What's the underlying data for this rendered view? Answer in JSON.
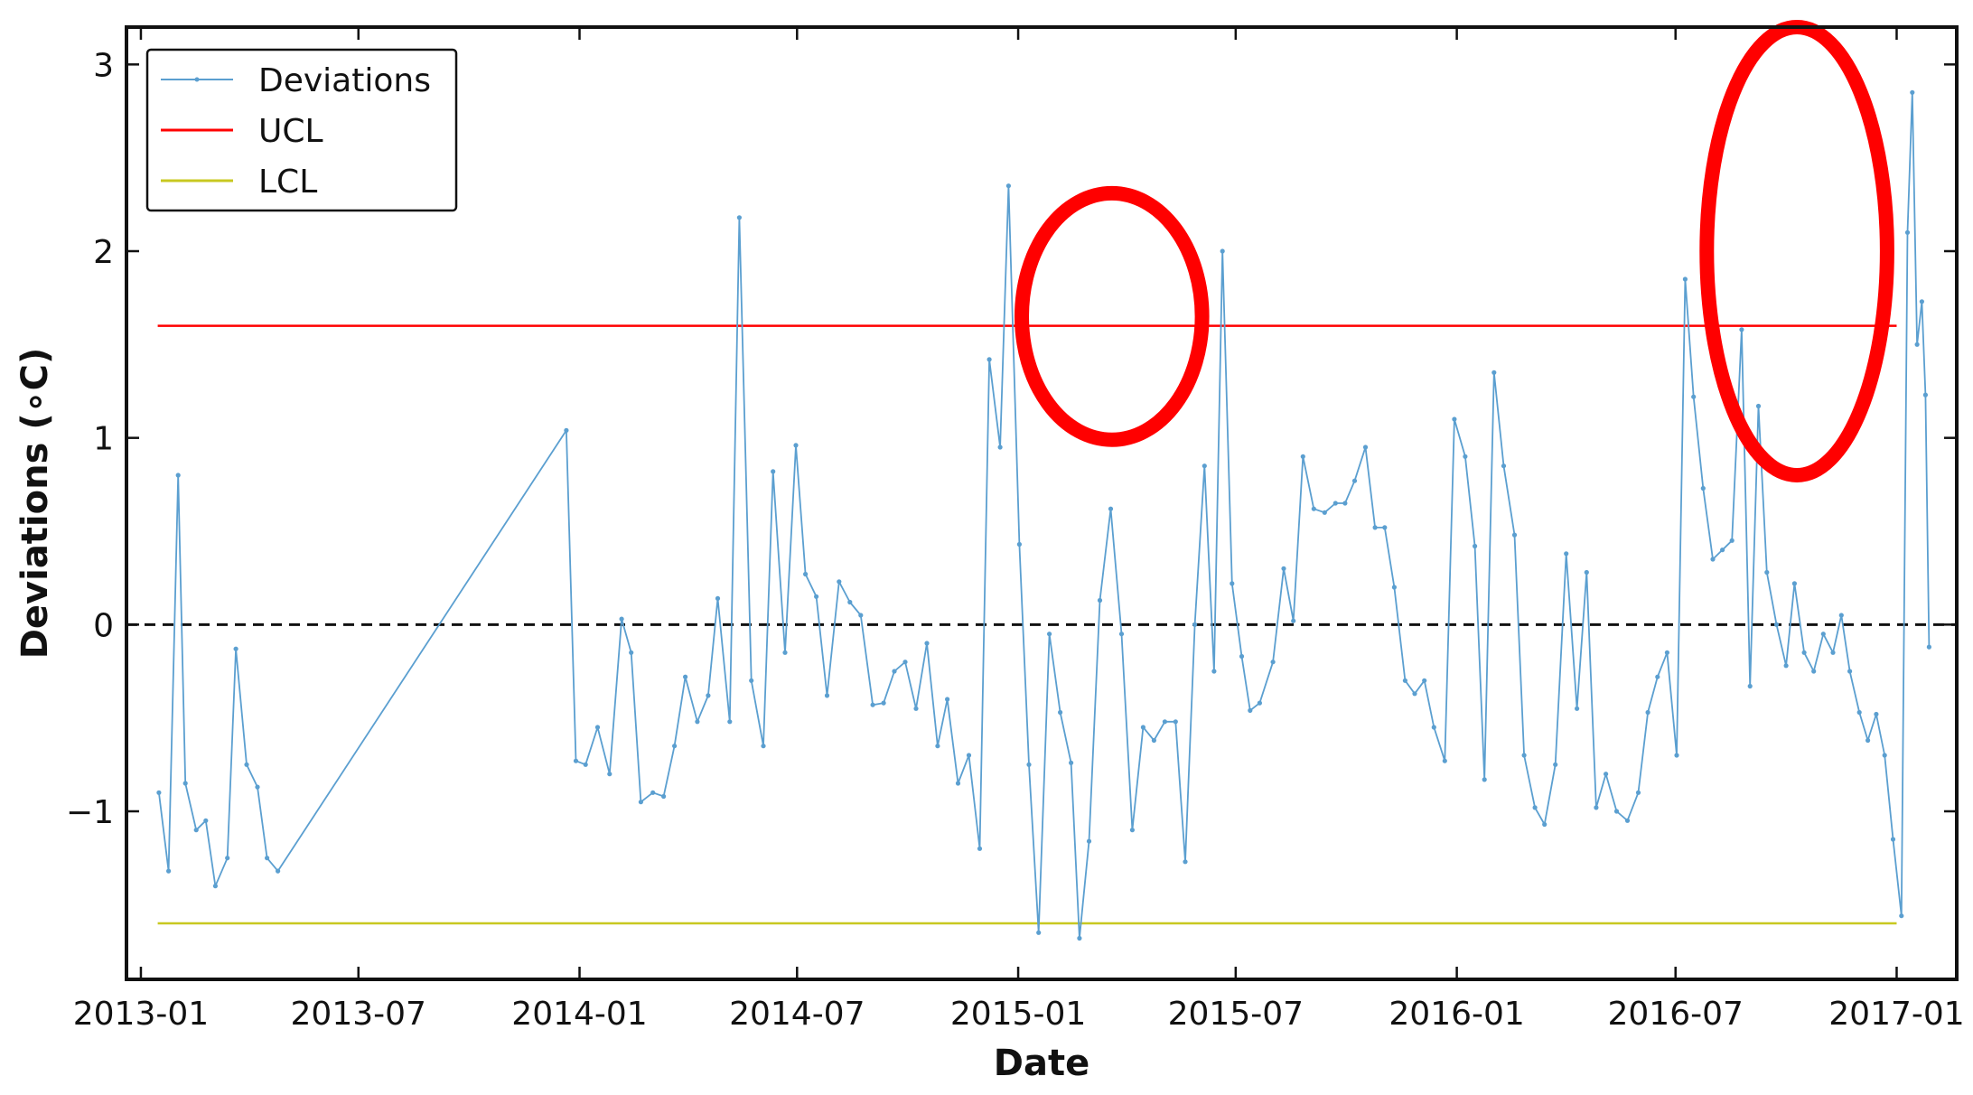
{
  "chart_data": {
    "type": "line",
    "xlabel": "Date",
    "ylabel": "Deviations (∘C)",
    "x_range": [
      "2012-12-20",
      "2017-02-20"
    ],
    "ylim": [
      -1.9,
      3.2
    ],
    "x_ticks": [
      "2013-01",
      "2013-07",
      "2014-01",
      "2014-07",
      "2015-01",
      "2015-07",
      "2016-01",
      "2016-07",
      "2017-01"
    ],
    "y_ticks": [
      {
        "value": 3,
        "label": "3"
      },
      {
        "value": 2,
        "label": "2"
      },
      {
        "value": 1,
        "label": "1"
      },
      {
        "value": 0,
        "label": "0"
      },
      {
        "value": -1,
        "label": "−1"
      }
    ],
    "grid": false,
    "legend_position": "top-left",
    "legend": [
      {
        "label": "Deviations",
        "color": "#5b9fd0"
      },
      {
        "label": "UCL",
        "color": "#ff0000"
      },
      {
        "label": "LCL",
        "color": "#c8c820"
      }
    ],
    "reference_lines": [
      {
        "name": "UCL",
        "value": 1.6,
        "color": "#ff0000",
        "from": "2013-01-15",
        "to": "2017-01-01"
      },
      {
        "name": "LCL",
        "value": -1.6,
        "color": "#c8c820",
        "from": "2013-01-15",
        "to": "2017-01-01"
      },
      {
        "name": "zero",
        "value": 0,
        "color": "#111111",
        "style": "dashed"
      }
    ],
    "highlights": [
      {
        "shape": "ellipse",
        "color": "#ff0000",
        "center": [
          "2015-03-20",
          1.65
        ],
        "radius_x_days": 75,
        "radius_y": 0.66
      },
      {
        "shape": "ellipse",
        "color": "#ff0000",
        "center": [
          "2016-10-10",
          2.0
        ],
        "radius_x_days": 75,
        "radius_y": 1.2
      }
    ],
    "series": [
      {
        "name": "Deviations",
        "color": "#5b9fd0",
        "points": [
          [
            "2013-01-16",
            -0.9
          ],
          [
            "2013-01-24",
            -1.32
          ],
          [
            "2013-02-01",
            0.8
          ],
          [
            "2013-02-07",
            -0.85
          ],
          [
            "2013-02-16",
            -1.1
          ],
          [
            "2013-02-24",
            -1.05
          ],
          [
            "2013-03-04",
            -1.4
          ],
          [
            "2013-03-14",
            -1.25
          ],
          [
            "2013-03-21",
            -0.13
          ],
          [
            "2013-03-30",
            -0.75
          ],
          [
            "2013-04-08",
            -0.87
          ],
          [
            "2013-04-16",
            -1.25
          ],
          [
            "2013-04-25",
            -1.32
          ],
          [
            "2013-12-21",
            1.04
          ],
          [
            "2013-12-29",
            -0.73
          ],
          [
            "2014-01-06",
            -0.75
          ],
          [
            "2014-01-16",
            -0.55
          ],
          [
            "2014-01-26",
            -0.8
          ],
          [
            "2014-02-05",
            0.03
          ],
          [
            "2014-02-13",
            -0.15
          ],
          [
            "2014-02-21",
            -0.95
          ],
          [
            "2014-03-03",
            -0.9
          ],
          [
            "2014-03-12",
            -0.92
          ],
          [
            "2014-03-21",
            -0.65
          ],
          [
            "2014-03-30",
            -0.28
          ],
          [
            "2014-04-09",
            -0.52
          ],
          [
            "2014-04-18",
            -0.38
          ],
          [
            "2014-04-26",
            0.14
          ],
          [
            "2014-05-06",
            -0.52
          ],
          [
            "2014-05-14",
            2.18
          ],
          [
            "2014-05-24",
            -0.3
          ],
          [
            "2014-06-03",
            -0.65
          ],
          [
            "2014-06-11",
            0.82
          ],
          [
            "2014-06-21",
            -0.15
          ],
          [
            "2014-06-30",
            0.96
          ],
          [
            "2014-07-08",
            0.27
          ],
          [
            "2014-07-17",
            0.15
          ],
          [
            "2014-07-26",
            -0.38
          ],
          [
            "2014-08-05",
            0.23
          ],
          [
            "2014-08-14",
            0.12
          ],
          [
            "2014-08-23",
            0.05
          ],
          [
            "2014-09-02",
            -0.43
          ],
          [
            "2014-09-11",
            -0.42
          ],
          [
            "2014-09-20",
            -0.25
          ],
          [
            "2014-09-29",
            -0.2
          ],
          [
            "2014-10-08",
            -0.45
          ],
          [
            "2014-10-17",
            -0.1
          ],
          [
            "2014-10-26",
            -0.65
          ],
          [
            "2014-11-03",
            -0.4
          ],
          [
            "2014-11-12",
            -0.85
          ],
          [
            "2014-11-21",
            -0.7
          ],
          [
            "2014-11-30",
            -1.2
          ],
          [
            "2014-12-08",
            1.42
          ],
          [
            "2014-12-17",
            0.95
          ],
          [
            "2014-12-24",
            2.35
          ],
          [
            "2015-01-02",
            0.43
          ],
          [
            "2015-01-10",
            -0.75
          ],
          [
            "2015-01-18",
            -1.65
          ],
          [
            "2015-01-27",
            -0.05
          ],
          [
            "2015-02-05",
            -0.47
          ],
          [
            "2015-02-14",
            -0.74
          ],
          [
            "2015-02-21",
            -1.68
          ],
          [
            "2015-03-01",
            -1.16
          ],
          [
            "2015-03-10",
            0.13
          ],
          [
            "2015-03-19",
            0.62
          ],
          [
            "2015-03-28",
            -0.05
          ],
          [
            "2015-04-06",
            -1.1
          ],
          [
            "2015-04-15",
            -0.55
          ],
          [
            "2015-04-24",
            -0.62
          ],
          [
            "2015-05-03",
            -0.52
          ],
          [
            "2015-05-12",
            -0.52
          ],
          [
            "2015-05-20",
            -1.27
          ],
          [
            "2015-05-28",
            0.0
          ],
          [
            "2015-06-05",
            0.85
          ],
          [
            "2015-06-13",
            -0.25
          ],
          [
            "2015-06-20",
            2.0
          ],
          [
            "2015-06-28",
            0.22
          ],
          [
            "2015-07-06",
            -0.17
          ],
          [
            "2015-07-13",
            -0.46
          ],
          [
            "2015-07-21",
            -0.42
          ],
          [
            "2015-08-01",
            -0.2
          ],
          [
            "2015-08-10",
            0.3
          ],
          [
            "2015-08-18",
            0.02
          ],
          [
            "2015-08-26",
            0.9
          ],
          [
            "2015-09-04",
            0.62
          ],
          [
            "2015-09-13",
            0.6
          ],
          [
            "2015-09-22",
            0.65
          ],
          [
            "2015-09-30",
            0.65
          ],
          [
            "2015-10-08",
            0.77
          ],
          [
            "2015-10-17",
            0.95
          ],
          [
            "2015-10-25",
            0.52
          ],
          [
            "2015-11-02",
            0.52
          ],
          [
            "2015-11-10",
            0.2
          ],
          [
            "2015-11-19",
            -0.3
          ],
          [
            "2015-11-27",
            -0.37
          ],
          [
            "2015-12-05",
            -0.3
          ],
          [
            "2015-12-13",
            -0.55
          ],
          [
            "2015-12-22",
            -0.73
          ],
          [
            "2015-12-30",
            1.1
          ],
          [
            "2016-01-08",
            0.9
          ],
          [
            "2016-01-16",
            0.42
          ],
          [
            "2016-01-24",
            -0.83
          ],
          [
            "2016-02-01",
            1.35
          ],
          [
            "2016-02-09",
            0.85
          ],
          [
            "2016-02-18",
            0.48
          ],
          [
            "2016-02-26",
            -0.7
          ],
          [
            "2016-03-06",
            -0.98
          ],
          [
            "2016-03-14",
            -1.07
          ],
          [
            "2016-03-23",
            -0.75
          ],
          [
            "2016-04-01",
            0.38
          ],
          [
            "2016-04-10",
            -0.45
          ],
          [
            "2016-04-18",
            0.28
          ],
          [
            "2016-04-26",
            -0.98
          ],
          [
            "2016-05-04",
            -0.8
          ],
          [
            "2016-05-13",
            -1.0
          ],
          [
            "2016-05-22",
            -1.05
          ],
          [
            "2016-05-31",
            -0.9
          ],
          [
            "2016-06-08",
            -0.47
          ],
          [
            "2016-06-16",
            -0.28
          ],
          [
            "2016-06-24",
            -0.15
          ],
          [
            "2016-07-02",
            -0.7
          ],
          [
            "2016-07-09",
            1.85
          ],
          [
            "2016-07-16",
            1.22
          ],
          [
            "2016-07-24",
            0.73
          ],
          [
            "2016-08-01",
            0.35
          ],
          [
            "2016-08-09",
            0.4
          ],
          [
            "2016-08-17",
            0.45
          ],
          [
            "2016-08-25",
            1.58
          ],
          [
            "2016-09-01",
            -0.33
          ],
          [
            "2016-09-08",
            1.17
          ],
          [
            "2016-09-15",
            0.28
          ],
          [
            "2016-09-23",
            0.0
          ],
          [
            "2016-10-01",
            -0.22
          ],
          [
            "2016-10-08",
            0.22
          ],
          [
            "2016-10-16",
            -0.15
          ],
          [
            "2016-10-24",
            -0.25
          ],
          [
            "2016-11-01",
            -0.05
          ],
          [
            "2016-11-09",
            -0.15
          ],
          [
            "2016-11-16",
            0.05
          ],
          [
            "2016-11-23",
            -0.25
          ],
          [
            "2016-12-01",
            -0.47
          ],
          [
            "2016-12-08",
            -0.62
          ],
          [
            "2016-12-15",
            -0.48
          ],
          [
            "2016-12-22",
            -0.7
          ],
          [
            "2016-12-29",
            -1.15
          ],
          [
            "2017-01-05",
            -1.56
          ],
          [
            "2017-01-10",
            2.1
          ],
          [
            "2017-01-14",
            2.85
          ],
          [
            "2017-01-18",
            1.5
          ],
          [
            "2017-01-22",
            1.73
          ],
          [
            "2017-01-25",
            1.23
          ],
          [
            "2017-01-28",
            -0.12
          ]
        ]
      }
    ]
  }
}
